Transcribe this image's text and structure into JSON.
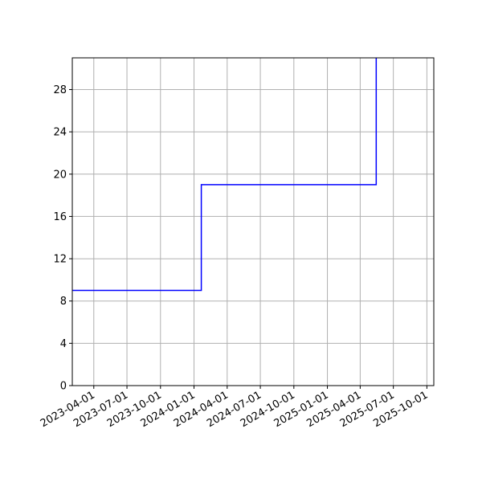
{
  "chart_data": {
    "type": "line",
    "title": "",
    "xlabel": "",
    "ylabel": "",
    "x_axis_type": "date",
    "xlim": [
      "2023-02-01",
      "2025-10-20"
    ],
    "ylim": [
      0,
      31
    ],
    "grid": true,
    "line_style": "steps-post",
    "x_ticks": [
      "2023-04-01",
      "2023-07-01",
      "2023-10-01",
      "2024-01-01",
      "2024-04-01",
      "2024-07-01",
      "2024-10-01",
      "2025-01-01",
      "2025-04-01",
      "2025-07-01",
      "2025-10-01"
    ],
    "y_ticks": [
      0,
      4,
      8,
      12,
      16,
      20,
      24,
      28
    ],
    "series": [
      {
        "color": "#0000ff",
        "x": [
          "2023-02-01",
          "2024-01-21",
          "2025-05-15",
          "2025-05-16"
        ],
        "y": [
          9,
          19,
          31,
          31
        ]
      }
    ]
  },
  "colors": {
    "line": "#0000ff",
    "grid": "#b0b0b0",
    "axes": "#000000",
    "background": "#ffffff"
  }
}
